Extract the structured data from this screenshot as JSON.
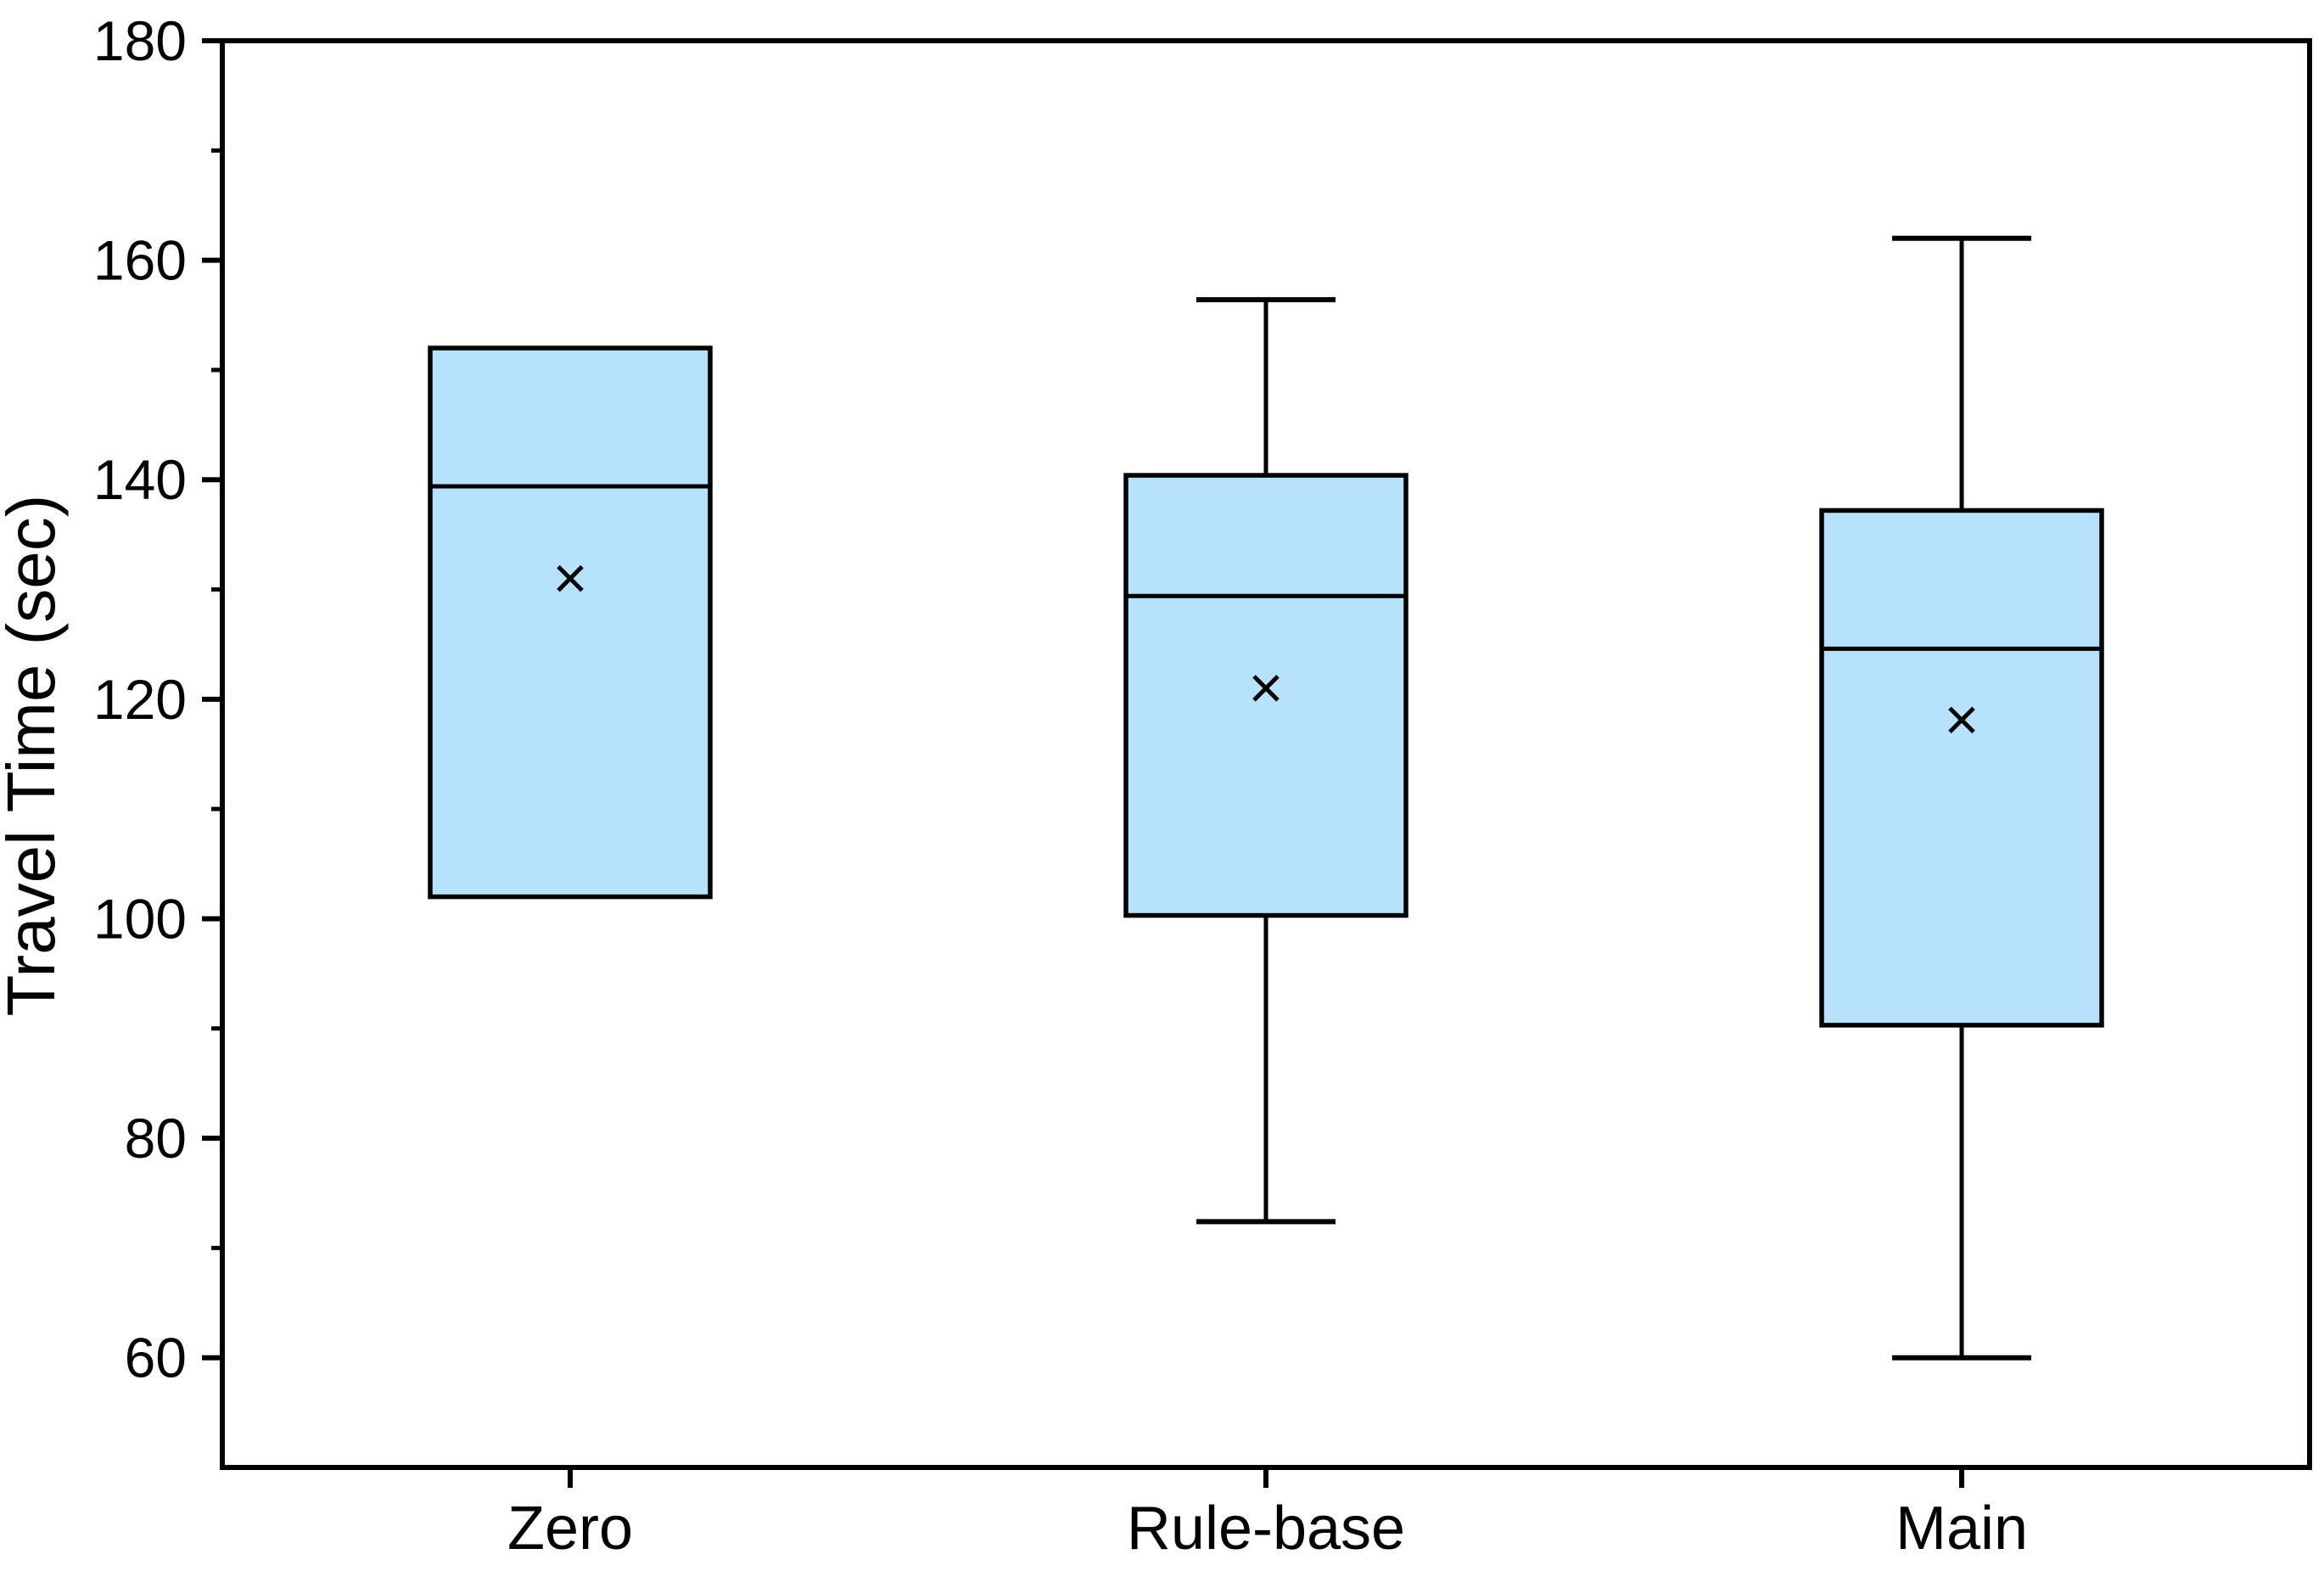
{
  "figure": {
    "background": "#FFFFFF"
  },
  "chart_data": {
    "type": "box",
    "title": "",
    "xlabel": "",
    "ylabel": "Travel Time (sec)",
    "categories": [
      "Zero",
      "Rule-base",
      "Main"
    ],
    "series": [
      {
        "name": "Zero",
        "whisker_low": null,
        "q1": 102.0,
        "median": 139.4,
        "q3": 152.0,
        "whisker_high": null,
        "mean": 131.0
      },
      {
        "name": "Rule-base",
        "whisker_low": 72.4,
        "q1": 100.3,
        "median": 129.4,
        "q3": 140.4,
        "whisker_high": 156.4,
        "mean": 121.0
      },
      {
        "name": "Main",
        "whisker_low": 60.0,
        "q1": 90.3,
        "median": 124.6,
        "q3": 137.2,
        "whisker_high": 162.0,
        "mean": 118.1
      }
    ],
    "ylim": [
      50,
      180
    ],
    "y_major_ticks": [
      60,
      80,
      100,
      120,
      140,
      160,
      180
    ],
    "y_minor_ticks": [
      70,
      90,
      110,
      130,
      150,
      170
    ],
    "grid": false,
    "legend": "none",
    "mean_marker": "x",
    "box_fill": "#B6E3FB",
    "line_color": "#000000"
  }
}
